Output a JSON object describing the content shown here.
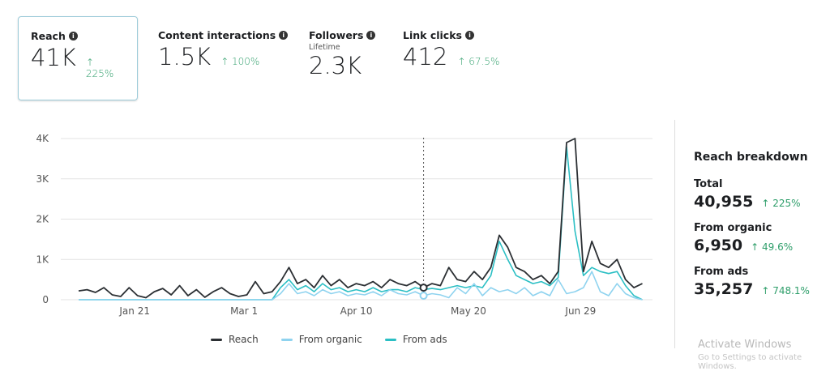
{
  "metrics": [
    {
      "label": "Reach",
      "value": "41K",
      "delta": "↑ 225%"
    },
    {
      "label": "Content interactions",
      "value": "1.5K",
      "delta": "↑ 100%"
    },
    {
      "label": "Followers",
      "sublabel": "Lifetime",
      "value": "2.3K"
    },
    {
      "label": "Link clicks",
      "value": "412",
      "delta": "↑ 67.5%"
    }
  ],
  "info_icon": "i",
  "chart_data": {
    "type": "line",
    "x_start": "Jan 1",
    "step_days": 3,
    "x_ticks": [
      {
        "day": 20,
        "label": "Jan 21"
      },
      {
        "day": 59,
        "label": "Mar 1"
      },
      {
        "day": 99,
        "label": "Apr 10"
      },
      {
        "day": 139,
        "label": "May 20"
      },
      {
        "day": 179,
        "label": "Jun 29"
      }
    ],
    "y_ticks": [
      {
        "v": 0,
        "label": "0"
      },
      {
        "v": 1000,
        "label": "1K"
      },
      {
        "v": 2000,
        "label": "2K"
      },
      {
        "v": 3000,
        "label": "3K"
      },
      {
        "v": 4000,
        "label": "4K"
      }
    ],
    "ylim": [
      0,
      4000
    ],
    "hover_day": 123,
    "series": [
      {
        "name": "Reach",
        "color": "#2b2f33",
        "values": [
          220,
          250,
          180,
          300,
          120,
          80,
          300,
          100,
          50,
          200,
          280,
          120,
          350,
          100,
          250,
          60,
          200,
          300,
          150,
          80,
          120,
          450,
          150,
          200,
          450,
          800,
          400,
          500,
          300,
          600,
          350,
          500,
          300,
          400,
          350,
          450,
          300,
          500,
          400,
          350,
          450,
          300,
          400,
          350,
          800,
          500,
          450,
          700,
          500,
          800,
          1600,
          1300,
          800,
          700,
          500,
          600,
          400,
          700,
          3900,
          4000,
          700,
          1450,
          900,
          800,
          1000,
          500,
          300,
          400
        ]
      },
      {
        "name": "From organic",
        "color": "#8fd3ef",
        "values": [
          0,
          0,
          0,
          0,
          0,
          0,
          0,
          0,
          0,
          0,
          0,
          0,
          0,
          0,
          0,
          0,
          0,
          0,
          0,
          0,
          0,
          0,
          0,
          0,
          150,
          400,
          150,
          200,
          100,
          250,
          150,
          200,
          100,
          150,
          120,
          200,
          100,
          250,
          150,
          120,
          200,
          100,
          150,
          120,
          50,
          300,
          150,
          400,
          100,
          300,
          200,
          250,
          150,
          300,
          100,
          200,
          100,
          500,
          150,
          200,
          300,
          700,
          200,
          100,
          400,
          150,
          50,
          0
        ]
      },
      {
        "name": "From ads",
        "color": "#2bbfc4",
        "values": [
          0,
          0,
          0,
          0,
          0,
          0,
          0,
          0,
          0,
          0,
          0,
          0,
          0,
          0,
          0,
          0,
          0,
          0,
          0,
          0,
          0,
          0,
          0,
          0,
          300,
          500,
          250,
          350,
          200,
          400,
          250,
          300,
          200,
          250,
          200,
          300,
          200,
          250,
          250,
          200,
          300,
          250,
          280,
          250,
          300,
          350,
          300,
          350,
          300,
          600,
          1450,
          1000,
          600,
          500,
          400,
          450,
          350,
          550,
          3800,
          1700,
          600,
          800,
          700,
          650,
          700,
          350,
          100,
          0
        ]
      }
    ]
  },
  "breakdown": {
    "title": "Reach breakdown",
    "items": [
      {
        "label": "Total",
        "value": "40,955",
        "delta": "↑ 225%"
      },
      {
        "label": "From organic",
        "value": "6,950",
        "delta": "↑ 49.6%"
      },
      {
        "label": "From ads",
        "value": "35,257",
        "delta": "↑ 748.1%"
      }
    ]
  },
  "watermark": {
    "line1": "Activate Windows",
    "line2": "Go to Settings to activate Windows."
  }
}
